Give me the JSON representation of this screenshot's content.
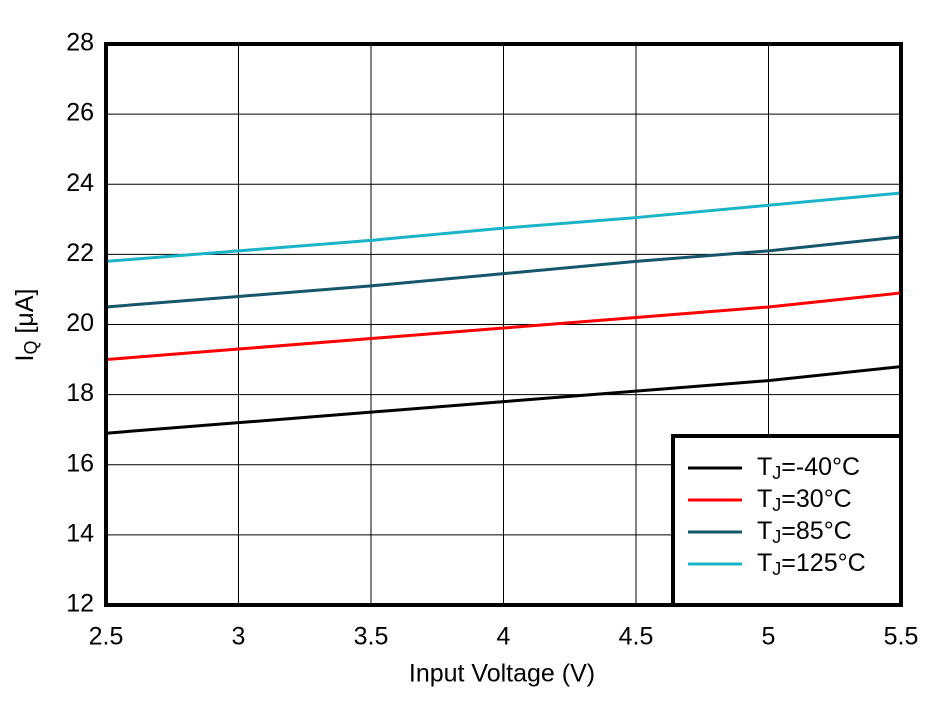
{
  "chart_data": {
    "type": "line",
    "x": [
      2.5,
      3,
      3.5,
      4,
      4.5,
      5,
      5.5
    ],
    "series": [
      {
        "name": "TJ=-40°C",
        "color": "#000000",
        "values": [
          16.9,
          17.2,
          17.5,
          17.8,
          18.1,
          18.4,
          18.8
        ]
      },
      {
        "name": "TJ=30°C",
        "color": "#ff0000",
        "values": [
          19.0,
          19.3,
          19.6,
          19.9,
          20.2,
          20.5,
          20.9
        ]
      },
      {
        "name": "TJ=85°C",
        "color": "#15566b",
        "values": [
          20.5,
          20.8,
          21.1,
          21.45,
          21.8,
          22.1,
          22.5
        ]
      },
      {
        "name": "TJ=125°C",
        "color": "#1ab4c8",
        "values": [
          21.8,
          22.1,
          22.4,
          22.75,
          23.05,
          23.4,
          23.75
        ]
      }
    ],
    "xlabel": "Input Voltage (V)",
    "ylabel": "IQ [μA]",
    "xlim": [
      2.5,
      5.5
    ],
    "xticks": [
      2.5,
      3,
      3.5,
      4,
      4.5,
      5,
      5.5
    ],
    "ylim": [
      12,
      28
    ],
    "yticks": [
      12,
      14,
      16,
      18,
      20,
      22,
      24,
      26,
      28
    ],
    "grid": true,
    "legend": "lower right"
  }
}
